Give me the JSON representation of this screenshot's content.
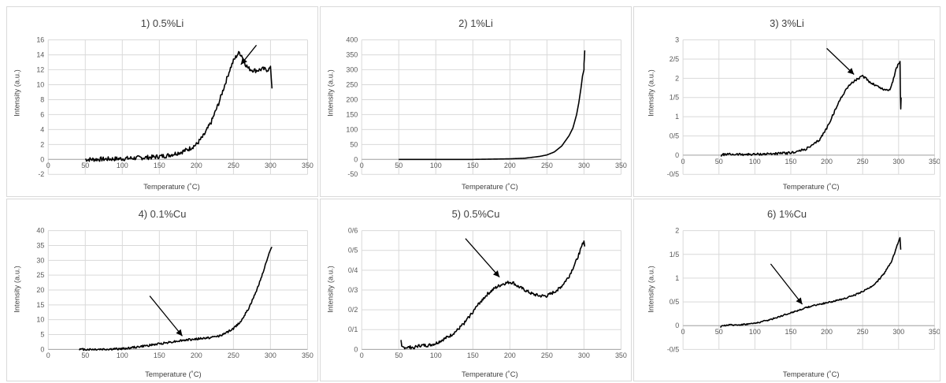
{
  "chart_data": [
    {
      "type": "line",
      "title": "1) 0.5%Li",
      "xlabel": "Temperature (˚C)",
      "ylabel": "Intensity (a.u.)",
      "xlim": [
        0,
        350
      ],
      "ylim": [
        -2,
        16
      ],
      "xticks": [
        "0",
        "50",
        "100",
        "150",
        "200",
        "250",
        "300",
        "350"
      ],
      "yticks": [
        "-2",
        "0",
        "2",
        "4",
        "6",
        "8",
        "10",
        "12",
        "14",
        "16"
      ],
      "grid": true,
      "series": [
        {
          "color": "#000000",
          "noise": 0.3,
          "x": [
            50,
            60,
            80,
            100,
            120,
            140,
            160,
            180,
            190,
            200,
            210,
            220,
            230,
            240,
            245,
            250,
            255,
            258,
            262,
            266,
            270,
            275,
            280,
            285,
            290,
            295,
            298,
            300,
            301,
            302
          ],
          "y": [
            0,
            0,
            0.05,
            0.1,
            0.2,
            0.3,
            0.5,
            1.0,
            1.4,
            2.0,
            3.2,
            5.0,
            7.5,
            10.5,
            12.0,
            13.2,
            14.0,
            14.3,
            13.8,
            12.8,
            12.2,
            12.0,
            11.9,
            12.0,
            12.1,
            12.0,
            12.1,
            12.2,
            11.0,
            9.5
          ]
        }
      ],
      "annotation": {
        "type": "arrow",
        "from": [
          281,
          15.3
        ],
        "to": [
          260,
          12.7
        ]
      }
    },
    {
      "type": "line",
      "title": "2) 1%Li",
      "xlabel": "Temperature (˚C)",
      "ylabel": "Intensity (a.u.)",
      "xlim": [
        0,
        350
      ],
      "ylim": [
        -50,
        400
      ],
      "xticks": [
        "0",
        "50",
        "100",
        "150",
        "200",
        "250",
        "300",
        "350"
      ],
      "yticks": [
        "-50",
        "0",
        "50",
        "100",
        "150",
        "200",
        "250",
        "300",
        "350",
        "400"
      ],
      "grid": true,
      "series": [
        {
          "color": "#000000",
          "noise": 0,
          "x": [
            50,
            100,
            150,
            200,
            220,
            240,
            250,
            260,
            270,
            280,
            285,
            290,
            293,
            296,
            298,
            299,
            300,
            300,
            300.5,
            301
          ],
          "y": [
            0,
            0,
            0,
            2,
            4,
            10,
            15,
            25,
            45,
            80,
            105,
            150,
            190,
            240,
            280,
            290,
            300,
            320,
            340,
            365
          ]
        }
      ]
    },
    {
      "type": "line",
      "title": "3) 3%Li",
      "xlabel": "Temperature (˚C)",
      "ylabel": "Intensity (a.u.)",
      "xlim": [
        0,
        350
      ],
      "ylim": [
        -0.5,
        3
      ],
      "xticks": [
        "0",
        "50",
        "100",
        "150",
        "200",
        "250",
        "300",
        "350"
      ],
      "yticks": [
        "-0/5",
        "0",
        "0/5",
        "1",
        "1/5",
        "2",
        "2/5",
        "3"
      ],
      "grid": true,
      "series": [
        {
          "color": "#000000",
          "noise": 0.03,
          "x": [
            53,
            55,
            58,
            70,
            100,
            130,
            150,
            160,
            170,
            180,
            190,
            200,
            210,
            220,
            230,
            240,
            245,
            250,
            255,
            260,
            265,
            270,
            275,
            280,
            285,
            288,
            290,
            293,
            296,
            298,
            300,
            302,
            302.5,
            303,
            303.5
          ],
          "y": [
            -0.02,
            0.01,
            0.02,
            0.02,
            0.02,
            0.04,
            0.06,
            0.1,
            0.15,
            0.25,
            0.4,
            0.7,
            1.1,
            1.5,
            1.8,
            1.95,
            2.0,
            2.05,
            2.0,
            1.9,
            1.85,
            1.8,
            1.75,
            1.7,
            1.7,
            1.72,
            1.8,
            2.0,
            2.2,
            2.3,
            2.38,
            2.42,
            1.6,
            1.2,
            1.5
          ]
        }
      ],
      "annotation": {
        "type": "arrow",
        "from": [
          200,
          2.78
        ],
        "to": [
          238,
          2.1
        ]
      }
    },
    {
      "type": "line",
      "title": "4) 0.1%Cu",
      "xlabel": "Temperature (˚C)",
      "ylabel": "Intensity (a.u.)",
      "xlim": [
        0,
        350
      ],
      "ylim": [
        0,
        40
      ],
      "xticks": [
        "0",
        "50",
        "100",
        "150",
        "200",
        "250",
        "300",
        "350"
      ],
      "yticks": [
        "0",
        "5",
        "10",
        "15",
        "20",
        "25",
        "30",
        "35",
        "40"
      ],
      "grid": true,
      "series": [
        {
          "color": "#000000",
          "noise": 0.35,
          "x": [
            42,
            60,
            80,
            100,
            120,
            140,
            160,
            180,
            200,
            220,
            230,
            240,
            250,
            260,
            270,
            280,
            290,
            295,
            300,
            302
          ],
          "y": [
            0,
            0,
            0.05,
            0.2,
            0.8,
            1.5,
            2.3,
            3.0,
            3.5,
            4.0,
            4.5,
            5.5,
            7.0,
            9.5,
            13.5,
            19,
            26,
            30,
            33.5,
            34.5
          ]
        }
      ],
      "annotation": {
        "type": "arrow",
        "from": [
          137,
          18
        ],
        "to": [
          181,
          4.5
        ]
      }
    },
    {
      "type": "line",
      "title": "5) 0.5%Cu",
      "xlabel": "Temperature (˚C)",
      "ylabel": "Intensity (a.u.)",
      "xlim": [
        0,
        350
      ],
      "ylim": [
        0,
        0.6
      ],
      "xticks": [
        "0",
        "50",
        "100",
        "150",
        "200",
        "250",
        "300",
        "350"
      ],
      "yticks": [
        "0",
        "0/1",
        "0/2",
        "0/3",
        "0/4",
        "0/5",
        "0/6"
      ],
      "grid": true,
      "series": [
        {
          "color": "#000000",
          "noise": 0.008,
          "x": [
            53,
            54,
            58,
            70,
            80,
            90,
            100,
            110,
            120,
            130,
            140,
            150,
            160,
            170,
            180,
            190,
            200,
            205,
            210,
            220,
            230,
            240,
            250,
            260,
            270,
            280,
            290,
            295,
            300,
            301
          ],
          "y": [
            0.04,
            0.01,
            0.01,
            0.01,
            0.02,
            0.02,
            0.03,
            0.05,
            0.07,
            0.1,
            0.14,
            0.19,
            0.24,
            0.28,
            0.31,
            0.33,
            0.34,
            0.335,
            0.32,
            0.3,
            0.28,
            0.27,
            0.27,
            0.29,
            0.32,
            0.37,
            0.45,
            0.5,
            0.55,
            0.52
          ]
        }
      ],
      "annotation": {
        "type": "arrow",
        "from": [
          140,
          0.56
        ],
        "to": [
          186,
          0.365
        ]
      }
    },
    {
      "type": "line",
      "title": "6) 1%Cu",
      "xlabel": "Temperature (˚C)",
      "ylabel": "Intensity (a.u.)",
      "xlim": [
        0,
        350
      ],
      "ylim": [
        -0.5,
        2
      ],
      "xticks": [
        "0",
        "50",
        "100",
        "150",
        "200",
        "250",
        "300",
        "350"
      ],
      "yticks": [
        "-0/5",
        "0",
        "0/5",
        "1",
        "1/5",
        "2"
      ],
      "grid": true,
      "series": [
        {
          "color": "#000000",
          "noise": 0.015,
          "x": [
            52,
            55,
            60,
            80,
            100,
            120,
            140,
            160,
            180,
            200,
            220,
            240,
            250,
            260,
            270,
            280,
            290,
            295,
            300,
            302,
            303
          ],
          "y": [
            -0.05,
            0,
            0.01,
            0.02,
            0.05,
            0.12,
            0.22,
            0.32,
            0.42,
            0.48,
            0.55,
            0.65,
            0.72,
            0.8,
            0.92,
            1.1,
            1.35,
            1.55,
            1.78,
            1.85,
            1.6
          ]
        }
      ],
      "annotation": {
        "type": "arrow",
        "from": [
          122,
          1.3
        ],
        "to": [
          166,
          0.45
        ]
      }
    }
  ]
}
